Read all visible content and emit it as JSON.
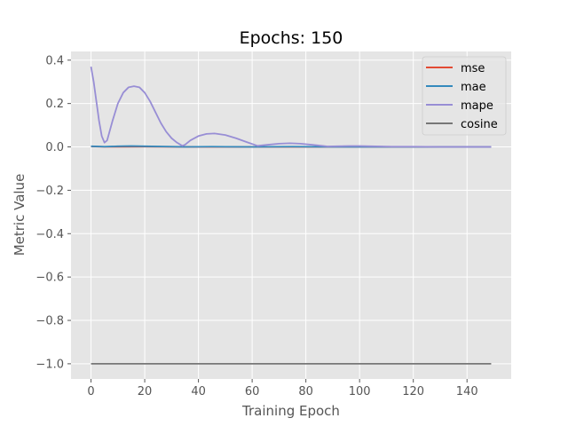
{
  "chart_data": {
    "type": "line",
    "title": "Epochs: 150",
    "xlabel": "Training Epoch",
    "ylabel": "Metric Value",
    "xlim": [
      -7.45,
      156.45
    ],
    "ylim": [
      -1.07,
      0.44
    ],
    "xticks": [
      0,
      20,
      40,
      60,
      80,
      100,
      120,
      140
    ],
    "yticks": [
      -1.0,
      -0.8,
      -0.6,
      -0.4,
      -0.2,
      0.0,
      0.2,
      0.4
    ],
    "ytick_labels": [
      "−1.0",
      "−0.8",
      "−0.6",
      "−0.4",
      "−0.2",
      "0.0",
      "0.2",
      "0.4"
    ],
    "grid": true,
    "legend_position": "top-right",
    "series": [
      {
        "name": "mse",
        "color": "#E24A33",
        "x": [
          0,
          5,
          10,
          20,
          35,
          60,
          100,
          149
        ],
        "y": [
          0.002,
          0.0005,
          0.0008,
          0.001,
          0.0003,
          0.0001,
          0.0,
          0.0
        ]
      },
      {
        "name": "mae",
        "color": "#348ABD",
        "x": [
          0,
          5,
          10,
          15,
          20,
          30,
          35,
          45,
          60,
          75,
          90,
          100,
          120,
          149
        ],
        "y": [
          0.003,
          0.001,
          0.003,
          0.004,
          0.003,
          0.001,
          0.0,
          0.001,
          0.0,
          0.001,
          0.0,
          0.0,
          0.0,
          0.0
        ]
      },
      {
        "name": "mape",
        "color": "#988ED5",
        "x": [
          0,
          1,
          2,
          3,
          4,
          5,
          6,
          8,
          10,
          12,
          14,
          16,
          18,
          20,
          22,
          24,
          26,
          28,
          30,
          32,
          34,
          35,
          37,
          40,
          43,
          46,
          50,
          54,
          58,
          62,
          66,
          70,
          74,
          78,
          82,
          86,
          88,
          92,
          96,
          100,
          104,
          108,
          112,
          116,
          120,
          130,
          149
        ],
        "y": [
          0.37,
          0.3,
          0.21,
          0.12,
          0.05,
          0.02,
          0.03,
          0.12,
          0.2,
          0.25,
          0.275,
          0.28,
          0.275,
          0.25,
          0.21,
          0.16,
          0.11,
          0.07,
          0.04,
          0.02,
          0.005,
          0.01,
          0.03,
          0.05,
          0.06,
          0.062,
          0.055,
          0.04,
          0.022,
          0.005,
          0.01,
          0.015,
          0.017,
          0.015,
          0.01,
          0.005,
          0.002,
          0.003,
          0.004,
          0.004,
          0.003,
          0.002,
          0.001,
          0.001,
          0.001,
          0.0,
          0.0
        ]
      },
      {
        "name": "cosine",
        "color": "#777777",
        "x": [
          0,
          149
        ],
        "y": [
          -1.0,
          -1.0
        ]
      }
    ]
  }
}
